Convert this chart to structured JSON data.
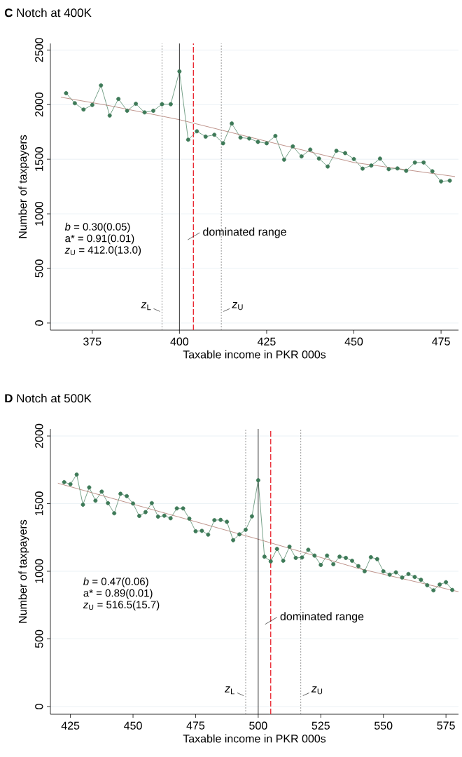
{
  "chart_data": [
    {
      "type": "line",
      "title": "**C**   Notch at 400K",
      "xlabel": "Taxable income in PKR 000s",
      "ylabel": "Number of taxpayers",
      "xlim": [
        363,
        480
      ],
      "ylim": [
        -65,
        2560
      ],
      "xticks": [
        375,
        400,
        425,
        450,
        475
      ],
      "yticks": [
        0,
        500,
        1000,
        1500,
        2000,
        2500
      ],
      "grid": "y",
      "marker": "circle",
      "series": [
        {
          "color": "#3e7a58",
          "x": [
            367.5,
            370,
            372.5,
            375,
            377.5,
            380,
            382.5,
            385,
            387.5,
            390,
            392.5,
            395,
            397.5,
            400,
            402.5,
            405,
            407.5,
            410,
            412.5,
            415,
            417.5,
            420,
            422.5,
            425,
            427.5,
            430,
            432.5,
            435,
            437.5,
            440,
            442.5,
            445,
            447.5,
            450,
            452.5,
            455,
            457.5,
            460,
            462.5,
            465,
            467.5,
            470,
            472.5,
            475,
            477.5
          ],
          "values": [
            2105,
            2013,
            1955,
            1997,
            2176,
            1900,
            2052,
            1944,
            2008,
            1929,
            1944,
            2004,
            2004,
            2304,
            1679,
            1756,
            1707,
            1724,
            1646,
            1827,
            1698,
            1690,
            1659,
            1646,
            1713,
            1496,
            1618,
            1526,
            1588,
            1506,
            1433,
            1577,
            1556,
            1502,
            1414,
            1442,
            1506,
            1409,
            1416,
            1394,
            1470,
            1470,
            1390,
            1297,
            1304
          ]
        },
        {
          "type": "line",
          "marker": "none",
          "color": "#a4655a",
          "x": [
            366,
            380,
            400,
            425,
            450,
            479
          ],
          "values": [
            2068,
            1990,
            1862,
            1664,
            1470,
            1341
          ]
        }
      ],
      "ref_lines": [
        {
          "axis": "x",
          "value": 395,
          "label": "*z*$_{L}$",
          "color": "#808080",
          "line_style": "dotted"
        },
        {
          "axis": "x",
          "value": 400,
          "color": "#000000",
          "line_style": "solid"
        },
        {
          "axis": "x",
          "value": 404,
          "label": "dominated range",
          "color": "#e8202a",
          "line_style": "dashed"
        },
        {
          "axis": "x",
          "value": 412,
          "label": "*z*$_{U}$",
          "color": "#808080",
          "line_style": "dotted"
        }
      ],
      "annotations": [
        "*b*  = 0.30(0.05)",
        "a* = 0.91(0.01)",
        "*z*$_{U}$ = 412.0(13.0)"
      ]
    },
    {
      "type": "line",
      "title": "**D**   Notch at 500K",
      "xlabel": "Taxable income in PKR 000s",
      "ylabel": "Number of taxpayers",
      "xlim": [
        417,
        580
      ],
      "ylim": [
        -57,
        2052
      ],
      "xticks": [
        425,
        450,
        475,
        500,
        525,
        550,
        575
      ],
      "yticks": [
        0,
        500,
        1000,
        1500,
        2000
      ],
      "grid": "y",
      "marker": "circle",
      "series": [
        {
          "color": "#3e7a58",
          "x": [
            422.5,
            425,
            427.5,
            430,
            432.5,
            435,
            437.5,
            440,
            442.5,
            445,
            447.5,
            450,
            452.5,
            455,
            457.5,
            460,
            462.5,
            465,
            467.5,
            470,
            472.5,
            475,
            477.5,
            480,
            482.5,
            485,
            487.5,
            490,
            492.5,
            495,
            497.5,
            500,
            502.5,
            505,
            507.5,
            510,
            512.5,
            515,
            517.5,
            520,
            522.5,
            525,
            527.5,
            530,
            532.5,
            535,
            537.5,
            540,
            542.5,
            545,
            547.5,
            550,
            552.5,
            555,
            557.5,
            560,
            562.5,
            565,
            567.5,
            570,
            572.5,
            575,
            577.5
          ],
          "values": [
            1659,
            1644,
            1715,
            1492,
            1620,
            1522,
            1589,
            1504,
            1429,
            1573,
            1556,
            1501,
            1409,
            1437,
            1504,
            1404,
            1411,
            1392,
            1465,
            1465,
            1389,
            1296,
            1299,
            1271,
            1378,
            1380,
            1366,
            1230,
            1273,
            1307,
            1406,
            1673,
            1108,
            1073,
            1165,
            1078,
            1182,
            1099,
            1102,
            1159,
            1116,
            1047,
            1116,
            1052,
            1108,
            1099,
            1078,
            1038,
            1000,
            1104,
            1090,
            1000,
            975,
            992,
            954,
            980,
            958,
            937,
            897,
            859,
            902,
            919,
            862
          ]
        },
        {
          "type": "line",
          "marker": "none",
          "color": "#a4655a",
          "x": [
            420,
            450,
            500,
            540,
            580
          ],
          "values": [
            1651,
            1496,
            1237,
            1021,
            849
          ]
        }
      ],
      "ref_lines": [
        {
          "axis": "x",
          "value": 495,
          "label": "*z*$_{L}$",
          "color": "#808080",
          "line_style": "dotted"
        },
        {
          "axis": "x",
          "value": 500,
          "color": "#000000",
          "line_style": "solid"
        },
        {
          "axis": "x",
          "value": 505,
          "label": "dominated range",
          "color": "#e8202a",
          "line_style": "dashed"
        },
        {
          "axis": "x",
          "value": 517,
          "label": "*z*$_{U}$",
          "color": "#808080",
          "line_style": "dotted"
        }
      ],
      "annotations": [
        "*b*  = 0.47(0.06)",
        "a* = 0.89(0.01)",
        "*z*$_{U}$ = 516.5(15.7)"
      ]
    }
  ]
}
